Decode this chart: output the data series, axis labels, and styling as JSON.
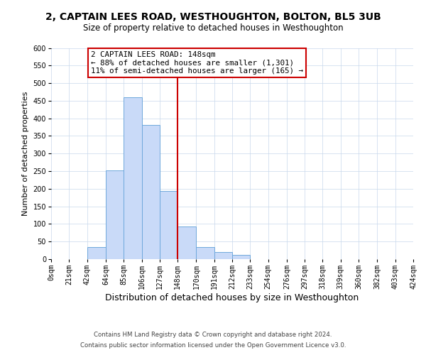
{
  "title1": "2, CAPTAIN LEES ROAD, WESTHOUGHTON, BOLTON, BL5 3UB",
  "title2": "Size of property relative to detached houses in Westhoughton",
  "xlabel": "Distribution of detached houses by size in Westhoughton",
  "ylabel": "Number of detached properties",
  "bin_edges": [
    0,
    21,
    42,
    64,
    85,
    106,
    127,
    148,
    170,
    191,
    212,
    233,
    254,
    276,
    297,
    318,
    339,
    360,
    382,
    403,
    424
  ],
  "bin_counts": [
    0,
    0,
    35,
    253,
    460,
    381,
    193,
    93,
    35,
    21,
    12,
    0,
    0,
    0,
    0,
    0,
    0,
    0,
    0,
    0
  ],
  "bar_facecolor": "#c9daf8",
  "bar_edgecolor": "#6fa8dc",
  "vline_x": 148,
  "vline_color": "#cc0000",
  "annotation_box_edgecolor": "#cc0000",
  "annotation_line1": "2 CAPTAIN LEES ROAD: 148sqm",
  "annotation_line2": "← 88% of detached houses are smaller (1,301)",
  "annotation_line3": "11% of semi-detached houses are larger (165) →",
  "ylim": [
    0,
    600
  ],
  "yticks": [
    0,
    50,
    100,
    150,
    200,
    250,
    300,
    350,
    400,
    450,
    500,
    550,
    600
  ],
  "xtick_labels": [
    "0sqm",
    "21sqm",
    "42sqm",
    "64sqm",
    "85sqm",
    "106sqm",
    "127sqm",
    "148sqm",
    "170sqm",
    "191sqm",
    "212sqm",
    "233sqm",
    "254sqm",
    "276sqm",
    "297sqm",
    "318sqm",
    "339sqm",
    "360sqm",
    "382sqm",
    "403sqm",
    "424sqm"
  ],
  "footnote1": "Contains HM Land Registry data © Crown copyright and database right 2024.",
  "footnote2": "Contains public sector information licensed under the Open Government Licence v3.0.",
  "bg_color": "#ffffff",
  "grid_color": "#c8d8ec",
  "title1_fontsize": 10,
  "title2_fontsize": 8.5,
  "annotation_fontsize": 7.8,
  "xlabel_fontsize": 9,
  "ylabel_fontsize": 8,
  "tick_fontsize": 7,
  "footnote_fontsize": 6.2
}
